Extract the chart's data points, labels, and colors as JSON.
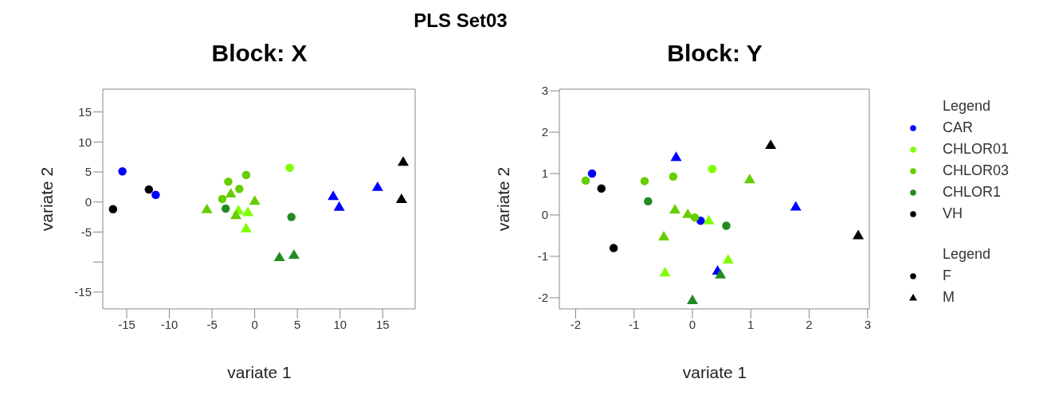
{
  "chart_data": [
    {
      "type": "other",
      "title": "PLS Set03"
    },
    {
      "type": "scatter",
      "title": "Block: X",
      "xlabel": "variate 1",
      "ylabel": "variate 2",
      "xlim": [
        -17.8,
        18.8
      ],
      "ylim": [
        -17.8,
        18.8
      ],
      "xticks": [
        -15,
        -10,
        -5,
        0,
        5,
        10,
        15
      ],
      "yticks": [
        {
          "value": -15,
          "label": "-15"
        },
        {
          "value": -10,
          "label": null
        },
        -5,
        0,
        5,
        10,
        15
      ],
      "series": [
        {
          "color": "#0000ff",
          "marker": [
            "circle",
            "circle",
            "triangle",
            "triangle",
            "triangle"
          ],
          "x": [
            -15.5,
            -11.6,
            9.2,
            9.9,
            14.4
          ],
          "values": [
            5.1,
            1.2,
            1.0,
            -0.8,
            2.5
          ]
        },
        {
          "color": "#7fff00",
          "marker": [
            "circle",
            "triangle",
            "triangle",
            "triangle"
          ],
          "x": [
            4.1,
            -1.0,
            -0.8,
            -1.9
          ],
          "values": [
            5.7,
            -4.4,
            -1.7,
            -1.4
          ]
        },
        {
          "color": "#66cd00",
          "marker": [
            "circle",
            "circle",
            "circle",
            "circle",
            "triangle",
            "triangle",
            "triangle",
            "triangle"
          ],
          "x": [
            -3.1,
            -1.0,
            -1.8,
            -3.8,
            -5.6,
            -2.8,
            0.0,
            -2.2
          ],
          "values": [
            3.4,
            4.5,
            2.2,
            0.5,
            -1.2,
            1.4,
            0.2,
            -2.2
          ]
        },
        {
          "color": "#228b22",
          "marker": [
            "circle",
            "circle",
            "triangle",
            "triangle"
          ],
          "x": [
            -3.4,
            4.3,
            2.9,
            4.6
          ],
          "values": [
            -1.1,
            -2.5,
            -9.2,
            -8.8
          ]
        },
        {
          "color": "#000000",
          "marker": [
            "circle",
            "circle",
            "triangle",
            "triangle"
          ],
          "x": [
            -12.4,
            -16.6,
            17.4,
            17.2
          ],
          "values": [
            2.1,
            -1.2,
            6.7,
            0.5
          ]
        }
      ]
    },
    {
      "type": "scatter",
      "title": "Block: Y",
      "xlabel": "variate 1",
      "ylabel": "variate 2",
      "xlim": [
        -2.28,
        3.03
      ],
      "ylim": [
        -2.27,
        3.04
      ],
      "xticks": [
        -2,
        -1,
        0,
        1,
        2,
        3
      ],
      "yticks": [
        -2,
        -1,
        0,
        1,
        2,
        3
      ],
      "legend": "right",
      "legend_title": "Legend",
      "annotations": [
        "Legend"
      ],
      "series": [
        {
          "name": "CAR",
          "color": "#0000ff",
          "marker": [
            "circle",
            "circle",
            "triangle",
            "triangle",
            "triangle"
          ],
          "x": [
            -1.72,
            0.14,
            -0.28,
            1.77,
            0.43
          ],
          "values": [
            1.0,
            -0.14,
            1.4,
            0.2,
            -1.35
          ]
        },
        {
          "name": "CHLOR01",
          "color": "#7fff00",
          "marker": [
            "circle",
            "triangle",
            "triangle",
            "triangle"
          ],
          "x": [
            0.34,
            -0.47,
            0.61,
            0.28
          ],
          "values": [
            1.11,
            -1.39,
            -1.08,
            -0.13
          ]
        },
        {
          "name": "CHLOR03",
          "color": "#66cd00",
          "marker": [
            "circle",
            "circle",
            "circle",
            "circle",
            "triangle",
            "triangle",
            "triangle",
            "triangle"
          ],
          "x": [
            -1.83,
            -0.82,
            -0.33,
            0.04,
            0.98,
            -0.3,
            -0.08,
            -0.49
          ],
          "values": [
            0.83,
            0.82,
            0.93,
            -0.06,
            0.86,
            0.13,
            0.02,
            -0.52
          ]
        },
        {
          "name": "CHLOR1",
          "color": "#228b22",
          "marker": [
            "circle",
            "circle",
            "triangle",
            "triangle"
          ],
          "x": [
            -0.76,
            0.58,
            0.0,
            0.48
          ],
          "values": [
            0.33,
            -0.26,
            -2.06,
            -1.44
          ]
        },
        {
          "name": "VH",
          "color": "#000000",
          "marker": [
            "circle",
            "circle",
            "triangle",
            "triangle"
          ],
          "x": [
            -1.56,
            -1.35,
            1.34,
            2.84
          ],
          "values": [
            0.64,
            -0.8,
            1.69,
            -0.49
          ]
        },
        {
          "name": "F",
          "color": "#000000",
          "marker": "circle"
        },
        {
          "name": "M",
          "color": "#000000",
          "marker": "triangle"
        }
      ]
    }
  ]
}
